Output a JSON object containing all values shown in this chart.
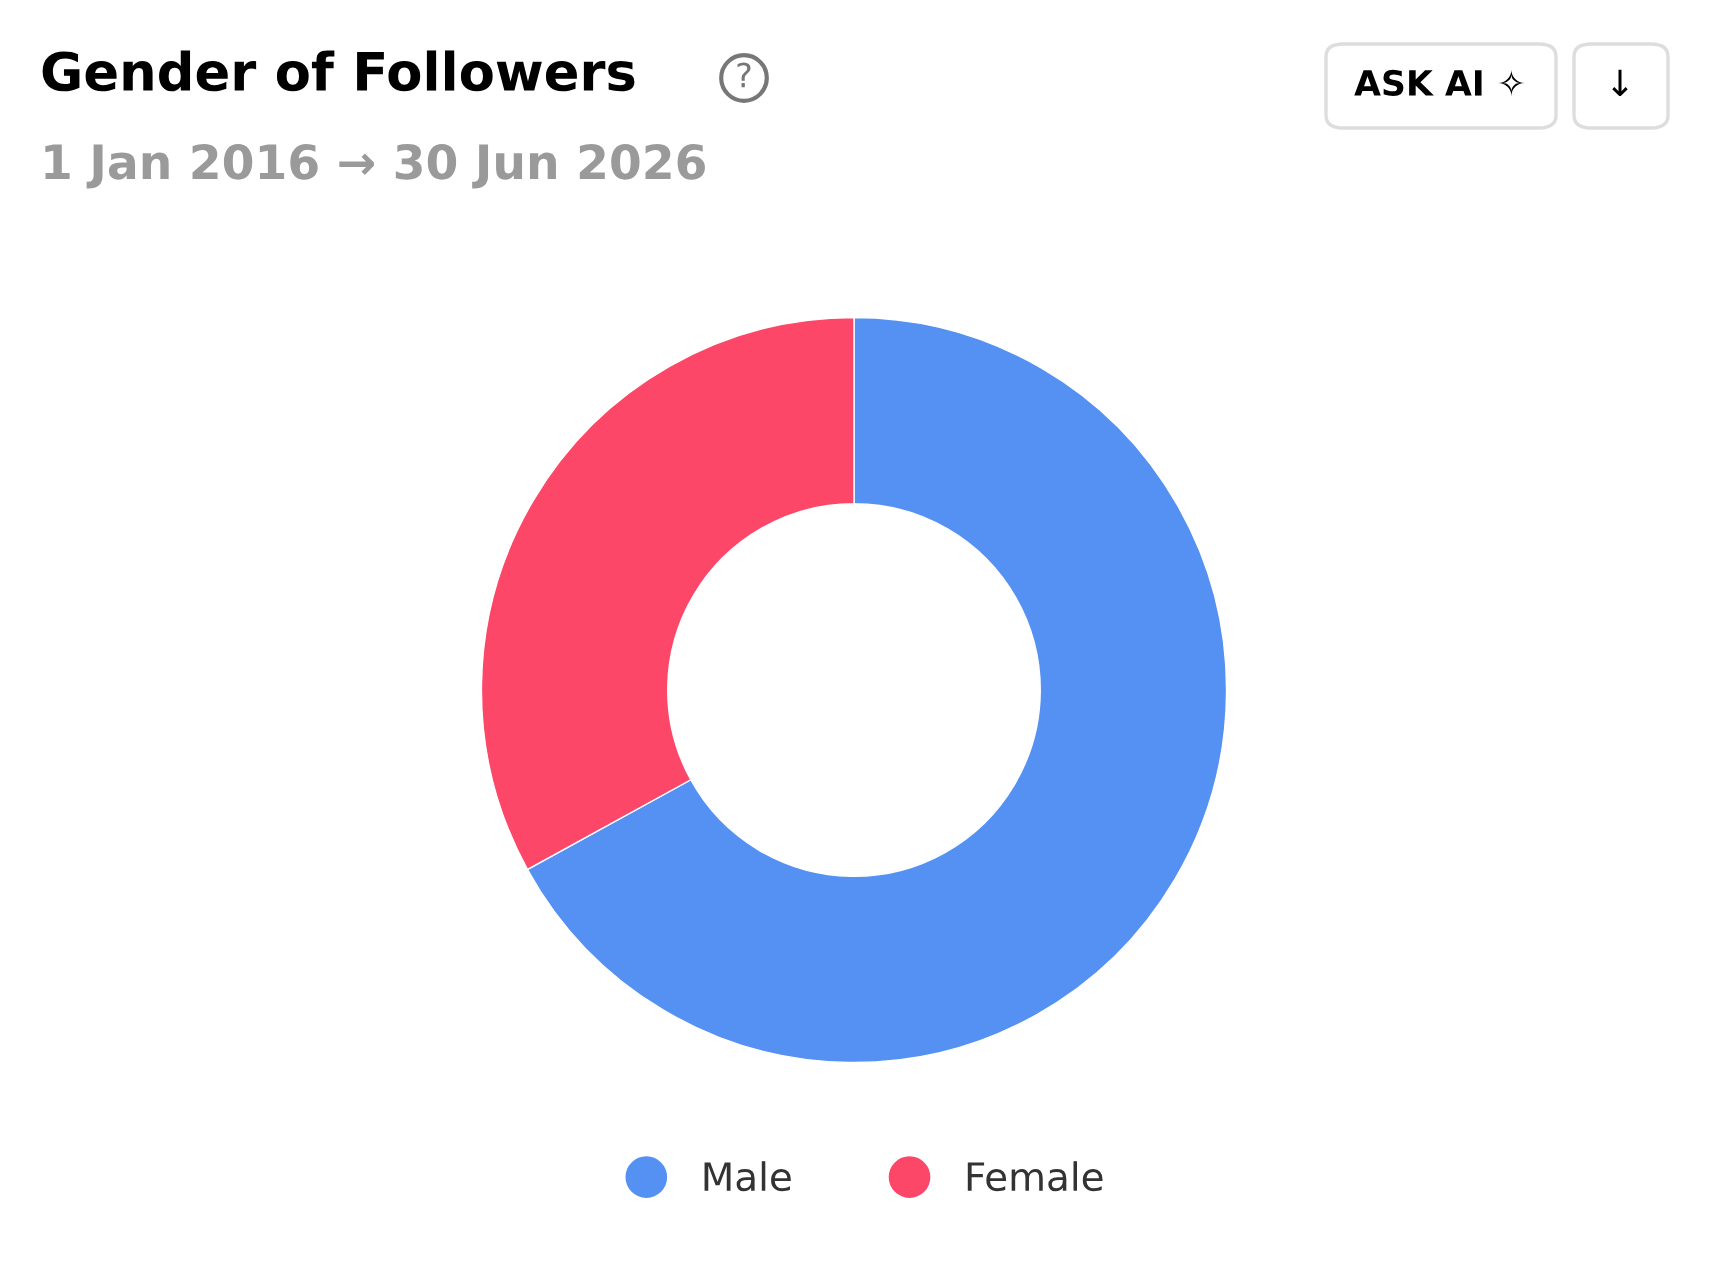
{
  "chart_data": {
    "type": "donut",
    "title": "Gender of Followers",
    "subtitle": "1 Jan 2016 → 30 Jun 2026",
    "categories": [
      "Male",
      "Female"
    ],
    "values": [
      67,
      33
    ],
    "colors": [
      "#5591f2",
      "#fc4768"
    ],
    "legend": "bottom",
    "annotations": [
      "?",
      "ASK AI ✧",
      "↓"
    ]
  }
}
